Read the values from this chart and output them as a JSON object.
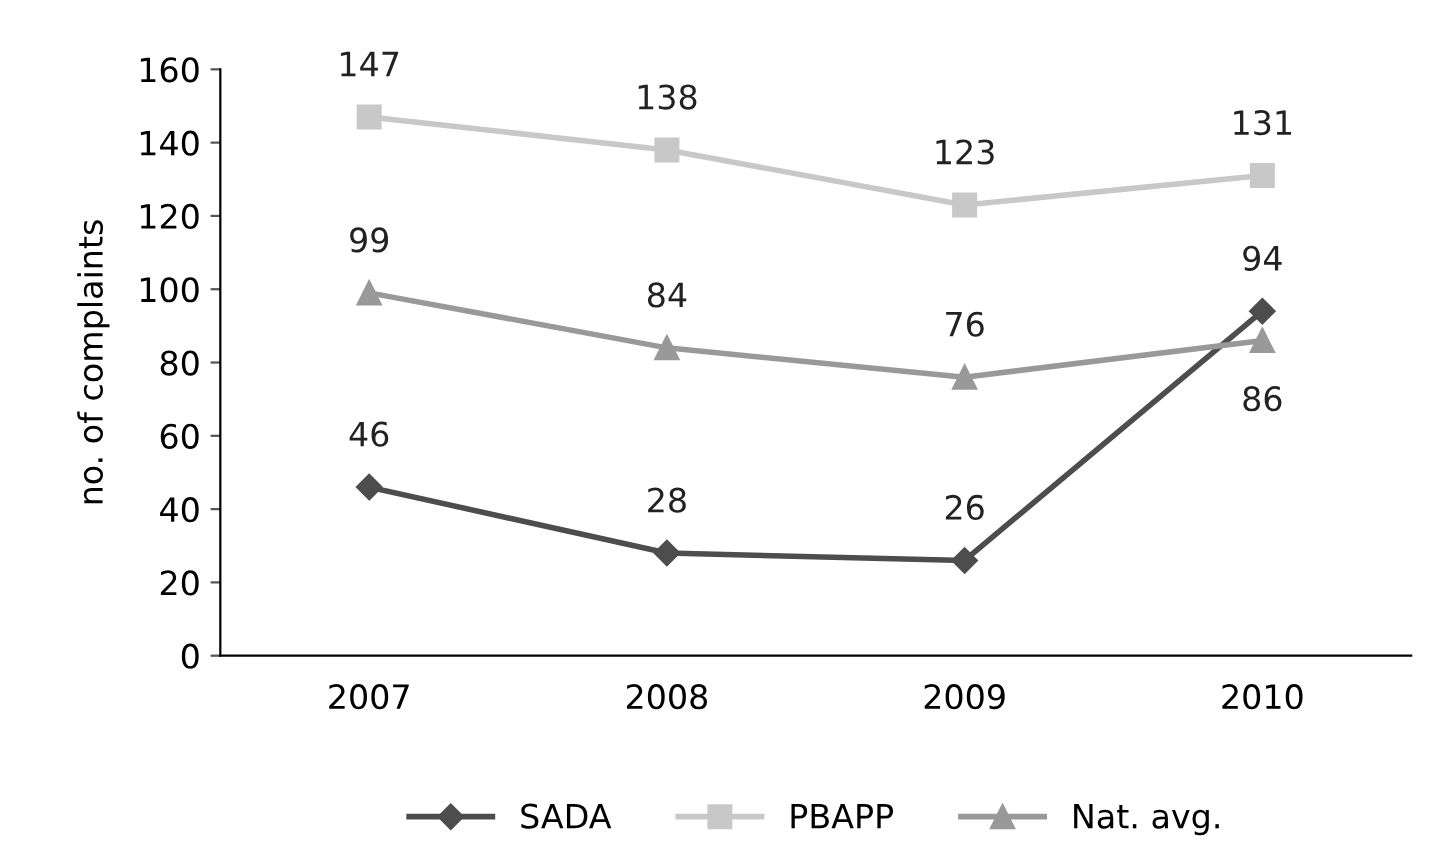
{
  "chart_data": {
    "type": "line",
    "ylabel": "no. of complaints",
    "categories": [
      "2007",
      "2008",
      "2009",
      "2010"
    ],
    "series": [
      {
        "name": "SADA",
        "color": "#4d4d4d",
        "marker": "diamond",
        "values": [
          46,
          28,
          26,
          94
        ]
      },
      {
        "name": "PBAPP",
        "color": "#c8c8c8",
        "marker": "square",
        "values": [
          147,
          138,
          123,
          131
        ]
      },
      {
        "name": "Nat. avg.",
        "color": "#999999",
        "marker": "triangle",
        "values": [
          99,
          84,
          76,
          86
        ]
      }
    ],
    "ylim": [
      0,
      160
    ],
    "yticks": [
      0,
      20,
      40,
      60,
      80,
      100,
      120,
      140,
      160
    ],
    "grid": false,
    "legend": "bottom",
    "data_labels": true
  }
}
